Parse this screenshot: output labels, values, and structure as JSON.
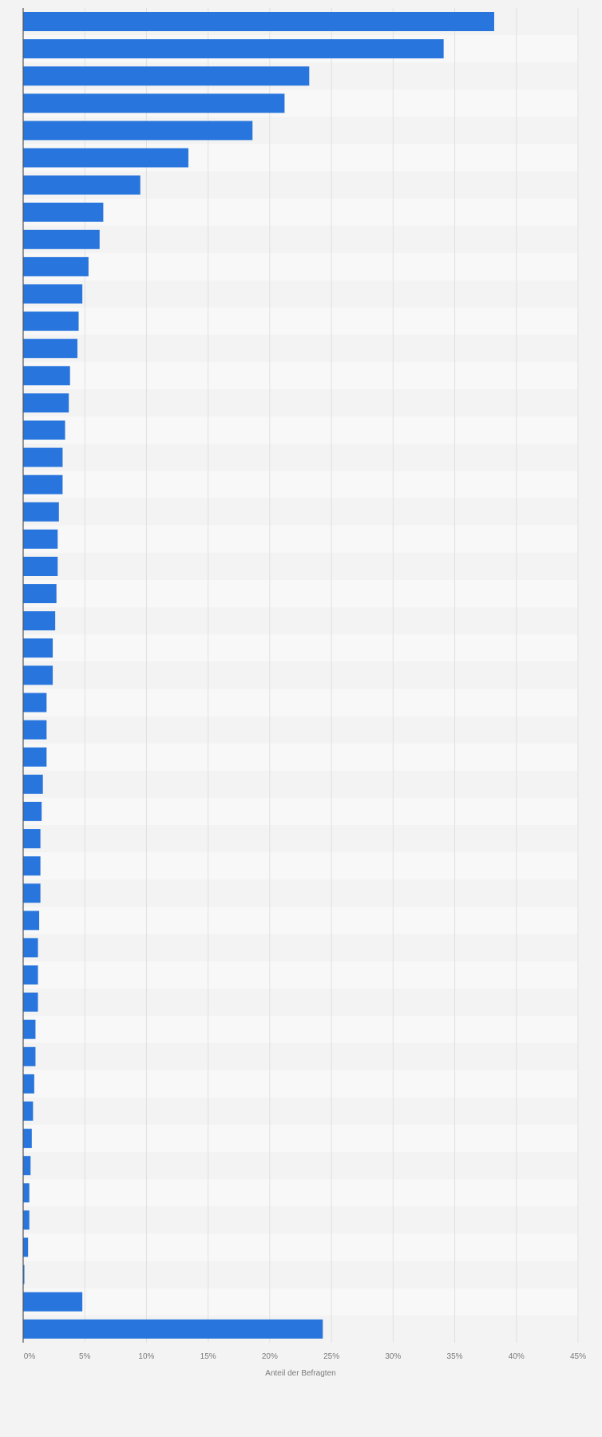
{
  "chart_data": {
    "type": "bar",
    "orientation": "horizontal",
    "xlabel": "Anteil der Befragten",
    "xlim": [
      0,
      45
    ],
    "x_ticks": [
      {
        "value": 0,
        "label": "0%"
      },
      {
        "value": 5,
        "label": "5%"
      },
      {
        "value": 10,
        "label": "10%"
      },
      {
        "value": 15,
        "label": "15%"
      },
      {
        "value": 20,
        "label": "20%"
      },
      {
        "value": 25,
        "label": "25%"
      },
      {
        "value": 30,
        "label": "30%"
      },
      {
        "value": 35,
        "label": "35%"
      },
      {
        "value": 40,
        "label": "40%"
      },
      {
        "value": 45,
        "label": "45%"
      }
    ],
    "grid": true,
    "bar_color": "#2876dd",
    "values": [
      38.2,
      34.1,
      23.2,
      21.2,
      18.6,
      13.4,
      9.5,
      6.5,
      6.2,
      5.3,
      4.8,
      4.5,
      4.4,
      3.8,
      3.7,
      3.4,
      3.2,
      3.2,
      2.9,
      2.8,
      2.8,
      2.7,
      2.6,
      2.4,
      2.4,
      1.9,
      1.9,
      1.9,
      1.6,
      1.5,
      1.4,
      1.4,
      1.4,
      1.3,
      1.2,
      1.2,
      1.2,
      1.0,
      1.0,
      0.9,
      0.8,
      0.7,
      0.6,
      0.5,
      0.5,
      0.4,
      0.1,
      4.8,
      24.3
    ]
  }
}
